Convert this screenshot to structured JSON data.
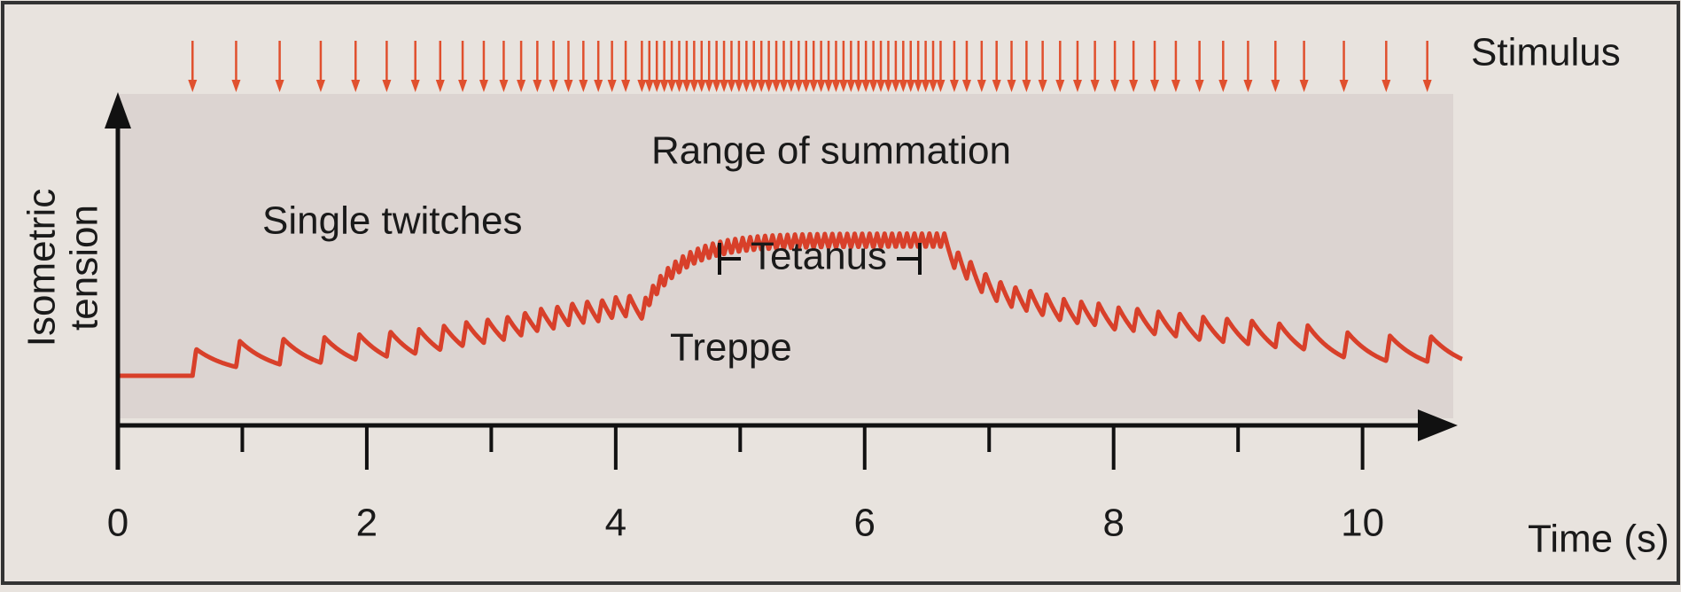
{
  "stimulus": {
    "label": "Stimulus",
    "times": [
      0.6,
      0.95,
      1.3,
      1.63,
      1.91,
      2.16,
      2.39,
      2.59,
      2.77,
      2.94,
      3.1,
      3.24,
      3.37,
      3.5,
      3.62,
      3.74,
      3.86,
      3.97,
      4.08,
      4.21,
      4.27,
      4.33,
      4.39,
      4.45,
      4.51,
      4.57,
      4.63,
      4.69,
      4.75,
      4.81,
      4.87,
      4.93,
      4.99,
      5.05,
      5.11,
      5.17,
      5.23,
      5.29,
      5.35,
      5.41,
      5.47,
      5.53,
      5.59,
      5.65,
      5.71,
      5.77,
      5.83,
      5.89,
      5.95,
      6.01,
      6.07,
      6.13,
      6.19,
      6.25,
      6.31,
      6.37,
      6.43,
      6.49,
      6.55,
      6.61,
      6.72,
      6.82,
      6.94,
      7.06,
      7.18,
      7.3,
      7.43,
      7.57,
      7.71,
      7.85,
      8.01,
      8.16,
      8.33,
      8.5,
      8.69,
      8.88,
      9.08,
      9.3,
      9.53,
      9.85,
      10.19,
      10.52
    ]
  },
  "axes": {
    "y_label_lines": [
      "Isometric",
      "tension"
    ],
    "x_label": "Time (s)",
    "xlim": [
      0,
      10.8
    ],
    "xticks": [
      0,
      2,
      4,
      6,
      8,
      10
    ],
    "minor_xticks": [
      1,
      3,
      5,
      7,
      9
    ]
  },
  "annotations": {
    "range": "Range of summation",
    "single": "Single twitches",
    "tetanus": "Tetanus",
    "treppe": "Treppe"
  }
}
